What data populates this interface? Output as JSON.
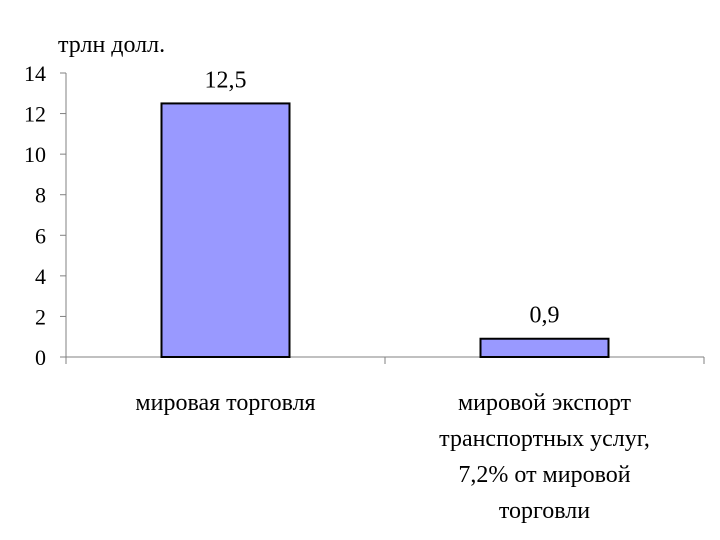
{
  "chart_data": {
    "type": "bar",
    "unit_label": "трлн долл.",
    "categories": [
      [
        "мировая торговля"
      ],
      [
        "мировой экспорт",
        "транспортных услуг,",
        "7,2% от мировой",
        "торговли"
      ]
    ],
    "values": [
      12.5,
      0.9
    ],
    "data_labels": [
      "12,5",
      "0,9"
    ],
    "ylim": [
      0,
      14
    ],
    "yticks": [
      0,
      2,
      4,
      6,
      8,
      10,
      12,
      14
    ],
    "grid": false,
    "legend": "none",
    "colors": {
      "bar_fill": "#9999ff",
      "bar_stroke": "#000000",
      "axis": "#808080"
    }
  }
}
